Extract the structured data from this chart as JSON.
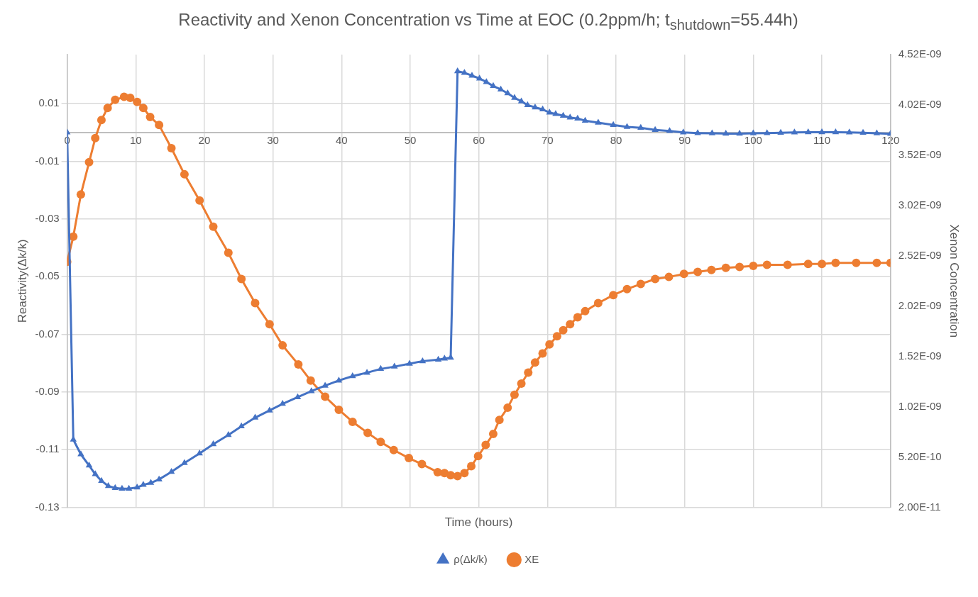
{
  "chart_data": {
    "type": "line",
    "title": "Reactivity and Xenon Concentration vs Time at EOC (0.2ppm/h; t$_{shutdown}$=55.44h)",
    "xlabel": "Time (hours)",
    "ylabel": "Reactivity(Δk/k)",
    "y2label": "Xenon Concentration",
    "xlim": [
      0,
      120
    ],
    "xticks": [
      0,
      10,
      20,
      30,
      40,
      50,
      60,
      70,
      80,
      90,
      100,
      110,
      120
    ],
    "ylim": [
      -0.13,
      0.027
    ],
    "yticks": [
      -0.13,
      -0.11,
      -0.09,
      -0.07,
      -0.05,
      -0.03,
      -0.01,
      0.01
    ],
    "y2lim": [
      2e-11,
      4.52e-09
    ],
    "y2ticks": [
      {
        "value": 2e-11,
        "label": "2.00E-11"
      },
      {
        "value": 5.2e-10,
        "label": "5.20E-10"
      },
      {
        "value": 1.02e-09,
        "label": "1.02E-09"
      },
      {
        "value": 1.52e-09,
        "label": "1.52E-09"
      },
      {
        "value": 2.02e-09,
        "label": "2.02E-09"
      },
      {
        "value": 2.52e-09,
        "label": "2.52E-09"
      },
      {
        "value": 3.02e-09,
        "label": "3.02E-09"
      },
      {
        "value": 3.52e-09,
        "label": "3.52E-09"
      },
      {
        "value": 4.02e-09,
        "label": "4.02E-09"
      },
      {
        "value": 4.52e-09,
        "label": "4.52E-09"
      }
    ],
    "grid": true,
    "legend": "bottom",
    "series": [
      {
        "name": "ρ(Δk/k)",
        "color": "#4472c4",
        "type": "line",
        "marker": "triangle",
        "axis": "y",
        "x": [
          0,
          0.9,
          2,
          3.2,
          4.1,
          5,
          6,
          7,
          8,
          9,
          10.2,
          11.1,
          12.2,
          13.4,
          15.2,
          17.1,
          19.3,
          21.3,
          23.5,
          25.4,
          27.4,
          29.5,
          31.4,
          33.6,
          35.6,
          37.6,
          39.6,
          41.6,
          43.7,
          45.7,
          47.7,
          49.9,
          51.8,
          54.1,
          55,
          55.9,
          56.9,
          57.9,
          59,
          60.1,
          61.1,
          62.1,
          63.2,
          64.2,
          65.2,
          66.2,
          67.1,
          68.2,
          69.3,
          70.3,
          71.2,
          72.3,
          73.3,
          74.4,
          75.5,
          77.4,
          79.6,
          81.6,
          83.6,
          85.7,
          87.8,
          89.8,
          91.9,
          94,
          96,
          98,
          100,
          102,
          104,
          106,
          108,
          110,
          112,
          114,
          116,
          118,
          120
        ],
        "values": [
          0,
          -0.1065,
          -0.1116,
          -0.1155,
          -0.1185,
          -0.1208,
          -0.1226,
          -0.1233,
          -0.1235,
          -0.1235,
          -0.1231,
          -0.1222,
          -0.1215,
          -0.1203,
          -0.1177,
          -0.1146,
          -0.1113,
          -0.1081,
          -0.1049,
          -0.1019,
          -0.0989,
          -0.0964,
          -0.0941,
          -0.0918,
          -0.0897,
          -0.0878,
          -0.086,
          -0.0845,
          -0.0833,
          -0.082,
          -0.0812,
          -0.0802,
          -0.0793,
          -0.0788,
          -0.0784,
          -0.0781,
          0.0212,
          0.0207,
          0.0197,
          0.0187,
          0.0175,
          0.0161,
          0.0149,
          0.0136,
          0.012,
          0.0108,
          0.0095,
          0.0087,
          0.008,
          0.0069,
          0.0064,
          0.0058,
          0.0052,
          0.0048,
          0.0041,
          0.0034,
          0.0026,
          0.0019,
          0.0016,
          0.0009,
          0.0005,
          0,
          -0.0002,
          -0.0003,
          -0.0004,
          -0.0004,
          -0.0003,
          -0.0002,
          -0.0001,
          0,
          0.0001,
          0.0001,
          0.0001,
          0,
          -0.0001,
          -0.0003,
          -0.0005
        ]
      },
      {
        "name": "XE",
        "color": "#ed7d31",
        "type": "line",
        "marker": "circle",
        "axis": "y2",
        "x": [
          0,
          0.9,
          2,
          3.2,
          4.1,
          5,
          5.9,
          7,
          8.3,
          9.2,
          10.2,
          11.1,
          12.1,
          13.4,
          15.2,
          17.1,
          19.3,
          21.3,
          23.5,
          25.4,
          27.4,
          29.5,
          31.4,
          33.7,
          35.5,
          37.6,
          39.6,
          41.6,
          43.8,
          45.7,
          47.6,
          49.8,
          51.7,
          54,
          55,
          55.9,
          56.9,
          57.9,
          58.9,
          59.9,
          61,
          62.1,
          63,
          64.2,
          65.2,
          66.2,
          67.2,
          68.2,
          69.3,
          70.3,
          71.4,
          72.3,
          73.3,
          74.4,
          75.5,
          77.4,
          79.6,
          81.6,
          83.6,
          85.7,
          87.7,
          89.9,
          91.9,
          93.9,
          96,
          98,
          100,
          102,
          105,
          108,
          110,
          112,
          115,
          118,
          120
        ],
        "values": [
          2.46e-09,
          2.71e-09,
          3.13e-09,
          3.45e-09,
          3.69e-09,
          3.87e-09,
          3.99e-09,
          4.07e-09,
          4.1e-09,
          4.09e-09,
          4.05e-09,
          3.99e-09,
          3.9e-09,
          3.82e-09,
          3.59e-09,
          3.33e-09,
          3.07e-09,
          2.81e-09,
          2.55e-09,
          2.29e-09,
          2.05e-09,
          1.84e-09,
          1.63e-09,
          1.44e-09,
          1.28e-09,
          1.12e-09,
          9.9e-10,
          8.7e-10,
          7.6e-10,
          6.7e-10,
          5.9e-10,
          5.1e-10,
          4.5e-10,
          3.7e-10,
          3.6e-10,
          3.4e-10,
          3.3e-10,
          3.6e-10,
          4.3e-10,
          5.3e-10,
          6.4e-10,
          7.5e-10,
          8.9e-10,
          1.01e-09,
          1.14e-09,
          1.25e-09,
          1.36e-09,
          1.46e-09,
          1.55e-09,
          1.64e-09,
          1.72e-09,
          1.78e-09,
          1.84e-09,
          1.91e-09,
          1.97e-09,
          2.05e-09,
          2.13e-09,
          2.19e-09,
          2.24e-09,
          2.29e-09,
          2.31e-09,
          2.34e-09,
          2.36e-09,
          2.38e-09,
          2.4e-09,
          2.41e-09,
          2.42e-09,
          2.43e-09,
          2.43e-09,
          2.44e-09,
          2.44e-09,
          2.45e-09,
          2.45e-09,
          2.45e-09,
          2.45e-09
        ]
      }
    ]
  }
}
